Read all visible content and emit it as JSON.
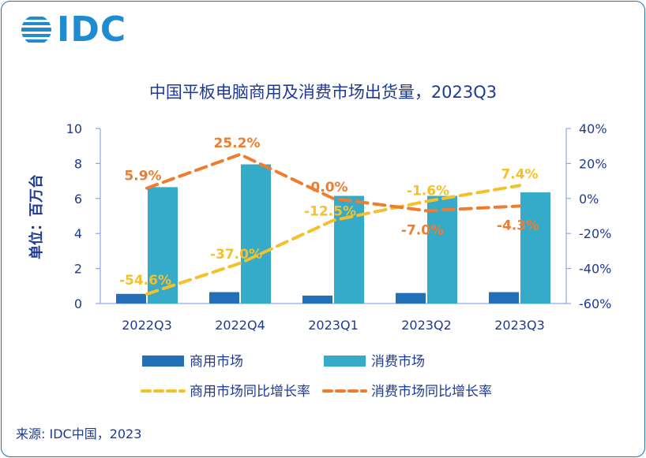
{
  "brand": {
    "logo": "IDC",
    "colors": {
      "logo": "#1f8bd0",
      "frame": "#1f6fb4"
    }
  },
  "source": "来源: IDC中国，2023",
  "chart_data": {
    "type": "bar",
    "title": "中国平板电脑商用及消费市场出货量，2023Q3",
    "ylabel": "单位：百万台",
    "xlabel": "",
    "categories": [
      "2022Q3",
      "2022Q4",
      "2023Q1",
      "2023Q2",
      "2023Q3"
    ],
    "ylim": [
      0,
      10
    ],
    "yticks": [
      "0",
      "2",
      "4",
      "6",
      "8",
      "10"
    ],
    "y2lim": [
      -60,
      40
    ],
    "y2ticks": [
      "-60%",
      "-40%",
      "-20%",
      "0%",
      "20%",
      "40%"
    ],
    "bars": [
      {
        "name": "商用市场",
        "values": [
          0.55,
          0.65,
          0.45,
          0.6,
          0.65
        ],
        "color": "#2370b8"
      },
      {
        "name": "消费市场",
        "values": [
          6.65,
          7.95,
          6.15,
          6.15,
          6.35
        ],
        "color": "#35aac9"
      }
    ],
    "lines": [
      {
        "name": "商用市场同比增长率",
        "values": [
          -54.6,
          -37.0,
          -12.5,
          -1.6,
          7.4
        ],
        "labels": [
          "-54.6%",
          "-37.0%",
          "-12.5%",
          "-1.6%",
          "7.4%"
        ],
        "color": "#f5c12a"
      },
      {
        "name": "消费市场同比增长率",
        "values": [
          5.9,
          25.2,
          0.0,
          -7.0,
          -4.3
        ],
        "labels": [
          "5.9%",
          "25.2%",
          "0.0%",
          "-7.0%",
          "-4.3%"
        ],
        "color": "#ee7d2f"
      }
    ],
    "legend_position": "bottom",
    "grid": false
  }
}
